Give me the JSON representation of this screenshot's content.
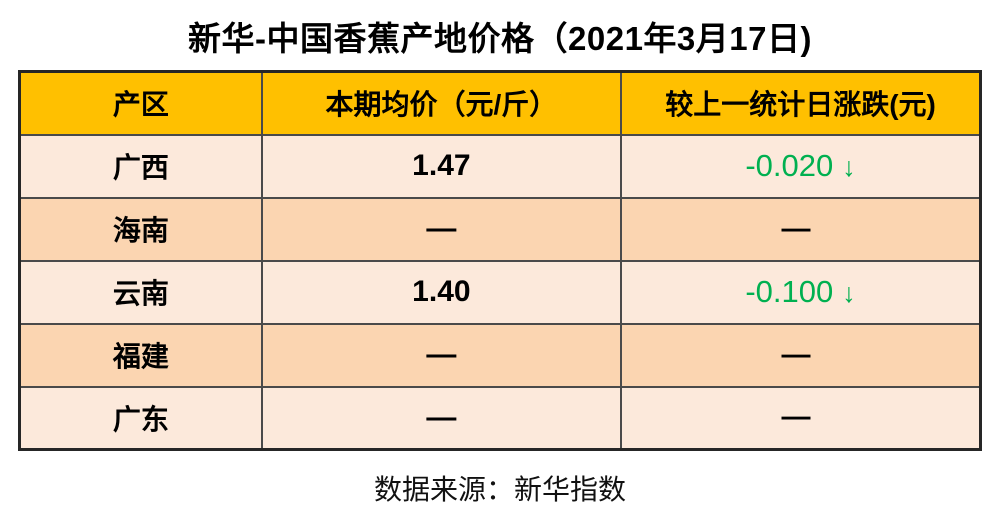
{
  "title": "新华-中国香蕉产地价格（2021年3月17日)",
  "table": {
    "headers": [
      "产区",
      "本期均价（元/斤）",
      "较上一统计日涨跌(元)"
    ],
    "rows": [
      {
        "region": "广西",
        "price": "1.47",
        "change": "-0.020",
        "arrow": "↓",
        "direction": "down"
      },
      {
        "region": "海南",
        "price": "—",
        "change": "—",
        "arrow": "",
        "direction": "none"
      },
      {
        "region": "云南",
        "price": "1.40",
        "change": "-0.100",
        "arrow": "↓",
        "direction": "down"
      },
      {
        "region": "福建",
        "price": "—",
        "change": "—",
        "arrow": "",
        "direction": "none"
      },
      {
        "region": "广东",
        "price": "—",
        "change": "—",
        "arrow": "",
        "direction": "none"
      }
    ]
  },
  "footer": "数据来源：新华指数",
  "colors": {
    "header_bg": "#FFC000",
    "row_light": "#FCE9DB",
    "row_dark": "#FBD5B1",
    "decline_green": "#00B050",
    "border": "#4a4a4a",
    "outer_border": "#262626",
    "text": "#000000"
  },
  "chart_data": {
    "type": "table",
    "title": "新华-中国香蕉产地价格（2021年3月17日)",
    "columns": [
      "产区",
      "本期均价（元/斤）",
      "较上一统计日涨跌(元)"
    ],
    "rows": [
      [
        "广西",
        1.47,
        -0.02
      ],
      [
        "海南",
        null,
        null
      ],
      [
        "云南",
        1.4,
        -0.1
      ],
      [
        "福建",
        null,
        null
      ],
      [
        "广东",
        null,
        null
      ]
    ],
    "notes": "负值以绿色显示并带下降箭头；空值以破折号显示",
    "source": "数据来源：新华指数"
  }
}
